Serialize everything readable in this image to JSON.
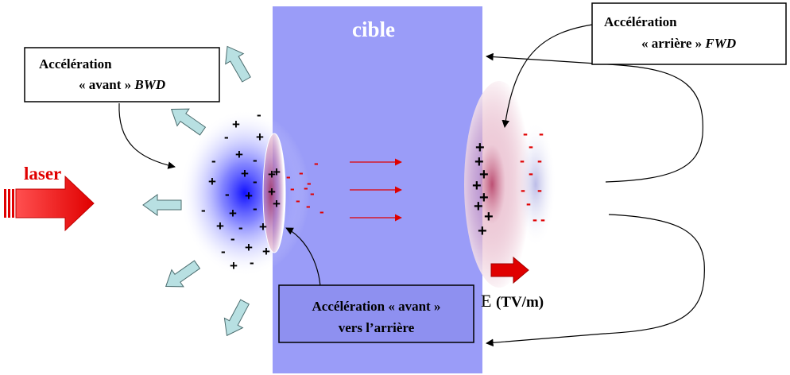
{
  "target_label": "cible",
  "laser_label": "laser",
  "box_bwd": {
    "line1": "Accélération",
    "line2": "« avant »",
    "line3": "BWD"
  },
  "box_fwd": {
    "line1": "Accélération",
    "line2": "« arrière »",
    "line3": "FWD"
  },
  "box_center": {
    "line1": "Accélération « avant »",
    "line2": "vers l’arrière"
  },
  "field": {
    "symbol": "E",
    "unit": "(TV/m)"
  },
  "colors": {
    "target": "#9a9cf8",
    "laser": "#ee1a1a",
    "electrons_red": "#e00000",
    "ion_arrows": "#b5dde0",
    "center_box": "#8e90f0",
    "blue_cloud": "#1a1aff"
  }
}
